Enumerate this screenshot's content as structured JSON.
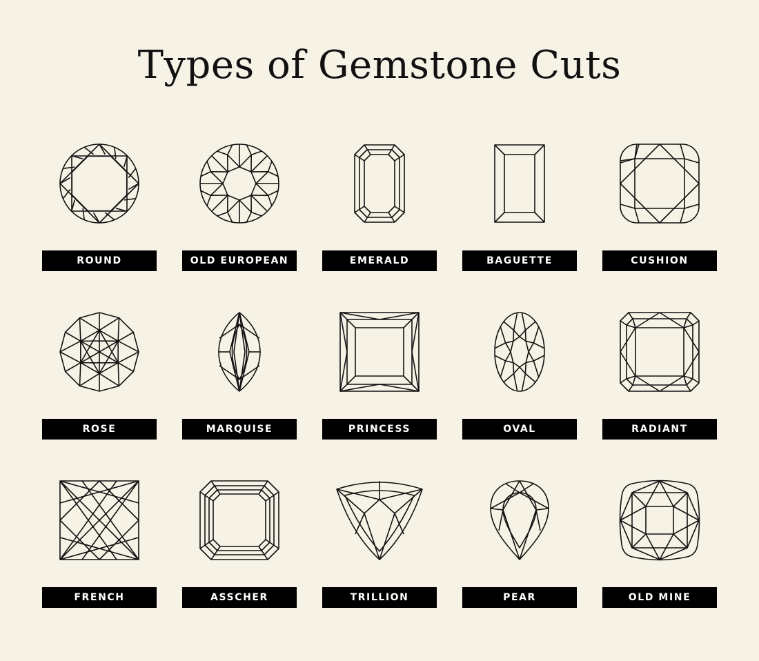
{
  "title": "Types of Gemstone Cuts",
  "colors": {
    "background": "#f6f3e6",
    "stroke": "#111111",
    "label_bg": "#000000",
    "label_text": "#ffffff"
  },
  "cuts": [
    {
      "label": "ROUND",
      "icon": "round-cut-icon"
    },
    {
      "label": "OLD EUROPEAN",
      "icon": "old-european-cut-icon"
    },
    {
      "label": "EMERALD",
      "icon": "emerald-cut-icon"
    },
    {
      "label": "BAGUETTE",
      "icon": "baguette-cut-icon"
    },
    {
      "label": "CUSHION",
      "icon": "cushion-cut-icon"
    },
    {
      "label": "ROSE",
      "icon": "rose-cut-icon"
    },
    {
      "label": "MARQUISE",
      "icon": "marquise-cut-icon"
    },
    {
      "label": "PRINCESS",
      "icon": "princess-cut-icon"
    },
    {
      "label": "OVAL",
      "icon": "oval-cut-icon"
    },
    {
      "label": "RADIANT",
      "icon": "radiant-cut-icon"
    },
    {
      "label": "FRENCH",
      "icon": "french-cut-icon"
    },
    {
      "label": "ASSCHER",
      "icon": "asscher-cut-icon"
    },
    {
      "label": "TRILLION",
      "icon": "trillion-cut-icon"
    },
    {
      "label": "PEAR",
      "icon": "pear-cut-icon"
    },
    {
      "label": "OLD MINE",
      "icon": "old-mine-cut-icon"
    }
  ]
}
